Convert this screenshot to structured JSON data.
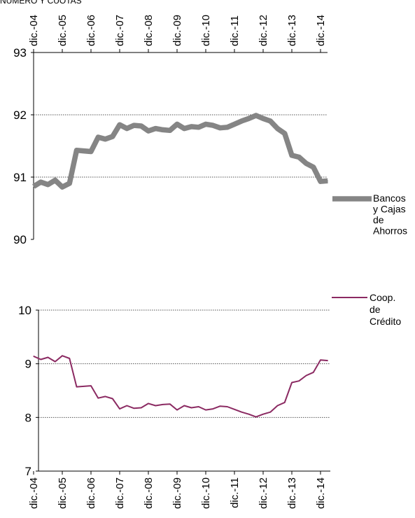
{
  "header_text": "NÚMERO Y CUOTAS",
  "chart_data": [
    {
      "type": "line",
      "x": [
        "dic.-04",
        "dic.-05",
        "dic.-06",
        "dic.-07",
        "dic.-08",
        "dic.-09",
        "dic.-10",
        "dic.-11",
        "dic.-12",
        "dic.-13",
        "dic.-14"
      ],
      "ylim": [
        90,
        93
      ],
      "yticks": [
        "90",
        "91",
        "92",
        "93"
      ],
      "grid": true,
      "legend_placement": "right",
      "series": [
        {
          "name": "Bancos y Cajas de Ahorros",
          "legend_lines": [
            "Bancos",
            "y Cajas",
            "de",
            "Ahorros"
          ],
          "color": "#858585",
          "points": [
            {
              "x": 2004.92,
              "y": 90.85
            },
            {
              "x": 2005.17,
              "y": 90.92
            },
            {
              "x": 2005.42,
              "y": 90.88
            },
            {
              "x": 2005.67,
              "y": 90.95
            },
            {
              "x": 2005.92,
              "y": 90.84
            },
            {
              "x": 2006.17,
              "y": 90.9
            },
            {
              "x": 2006.42,
              "y": 91.43
            },
            {
              "x": 2006.67,
              "y": 91.42
            },
            {
              "x": 2006.92,
              "y": 91.41
            },
            {
              "x": 2007.17,
              "y": 91.64
            },
            {
              "x": 2007.42,
              "y": 91.61
            },
            {
              "x": 2007.67,
              "y": 91.65
            },
            {
              "x": 2007.92,
              "y": 91.84
            },
            {
              "x": 2008.17,
              "y": 91.78
            },
            {
              "x": 2008.42,
              "y": 91.83
            },
            {
              "x": 2008.67,
              "y": 91.82
            },
            {
              "x": 2008.92,
              "y": 91.74
            },
            {
              "x": 2009.17,
              "y": 91.78
            },
            {
              "x": 2009.42,
              "y": 91.76
            },
            {
              "x": 2009.67,
              "y": 91.75
            },
            {
              "x": 2009.92,
              "y": 91.85
            },
            {
              "x": 2010.17,
              "y": 91.78
            },
            {
              "x": 2010.42,
              "y": 91.81
            },
            {
              "x": 2010.67,
              "y": 91.8
            },
            {
              "x": 2010.92,
              "y": 91.85
            },
            {
              "x": 2011.17,
              "y": 91.83
            },
            {
              "x": 2011.42,
              "y": 91.79
            },
            {
              "x": 2011.67,
              "y": 91.8
            },
            {
              "x": 2011.92,
              "y": 91.85
            },
            {
              "x": 2012.17,
              "y": 91.9
            },
            {
              "x": 2012.42,
              "y": 91.94
            },
            {
              "x": 2012.67,
              "y": 91.99
            },
            {
              "x": 2012.92,
              "y": 91.94
            },
            {
              "x": 2013.17,
              "y": 91.9
            },
            {
              "x": 2013.42,
              "y": 91.78
            },
            {
              "x": 2013.67,
              "y": 91.7
            },
            {
              "x": 2013.92,
              "y": 91.35
            },
            {
              "x": 2014.17,
              "y": 91.32
            },
            {
              "x": 2014.42,
              "y": 91.22
            },
            {
              "x": 2014.67,
              "y": 91.16
            },
            {
              "x": 2014.92,
              "y": 90.93
            },
            {
              "x": 2015.17,
              "y": 90.94
            }
          ]
        }
      ]
    },
    {
      "type": "line",
      "x": [
        "dic.-04",
        "dic.-05",
        "dic.-06",
        "dic.-07",
        "dic.-08",
        "dic.-09",
        "dic.-10",
        "dic.-11",
        "dic.-12",
        "dic.-13",
        "dic.-14"
      ],
      "ylim": [
        7,
        10
      ],
      "yticks": [
        "7",
        "8",
        "9",
        "10"
      ],
      "grid": true,
      "legend_placement": "top-right",
      "series": [
        {
          "name": "Coop. de Crédito",
          "legend_lines": [
            "Coop.",
            "de",
            "Crédito"
          ],
          "color": "#8b2a62",
          "points": [
            {
              "x": 2004.92,
              "y": 9.14
            },
            {
              "x": 2005.17,
              "y": 9.08
            },
            {
              "x": 2005.42,
              "y": 9.12
            },
            {
              "x": 2005.67,
              "y": 9.04
            },
            {
              "x": 2005.92,
              "y": 9.15
            },
            {
              "x": 2006.17,
              "y": 9.1
            },
            {
              "x": 2006.42,
              "y": 8.57
            },
            {
              "x": 2006.67,
              "y": 8.58
            },
            {
              "x": 2006.92,
              "y": 8.59
            },
            {
              "x": 2007.17,
              "y": 8.36
            },
            {
              "x": 2007.42,
              "y": 8.39
            },
            {
              "x": 2007.67,
              "y": 8.35
            },
            {
              "x": 2007.92,
              "y": 8.16
            },
            {
              "x": 2008.17,
              "y": 8.22
            },
            {
              "x": 2008.42,
              "y": 8.17
            },
            {
              "x": 2008.67,
              "y": 8.18
            },
            {
              "x": 2008.92,
              "y": 8.26
            },
            {
              "x": 2009.17,
              "y": 8.22
            },
            {
              "x": 2009.42,
              "y": 8.24
            },
            {
              "x": 2009.67,
              "y": 8.25
            },
            {
              "x": 2009.92,
              "y": 8.14
            },
            {
              "x": 2010.17,
              "y": 8.22
            },
            {
              "x": 2010.42,
              "y": 8.18
            },
            {
              "x": 2010.67,
              "y": 8.2
            },
            {
              "x": 2010.92,
              "y": 8.14
            },
            {
              "x": 2011.17,
              "y": 8.16
            },
            {
              "x": 2011.42,
              "y": 8.21
            },
            {
              "x": 2011.67,
              "y": 8.2
            },
            {
              "x": 2011.92,
              "y": 8.15
            },
            {
              "x": 2012.17,
              "y": 8.1
            },
            {
              "x": 2012.42,
              "y": 8.06
            },
            {
              "x": 2012.67,
              "y": 8.01
            },
            {
              "x": 2012.92,
              "y": 8.06
            },
            {
              "x": 2013.17,
              "y": 8.1
            },
            {
              "x": 2013.42,
              "y": 8.22
            },
            {
              "x": 2013.67,
              "y": 8.28
            },
            {
              "x": 2013.92,
              "y": 8.65
            },
            {
              "x": 2014.17,
              "y": 8.68
            },
            {
              "x": 2014.42,
              "y": 8.78
            },
            {
              "x": 2014.67,
              "y": 8.84
            },
            {
              "x": 2014.92,
              "y": 9.07
            },
            {
              "x": 2015.17,
              "y": 9.06
            }
          ]
        }
      ]
    }
  ]
}
